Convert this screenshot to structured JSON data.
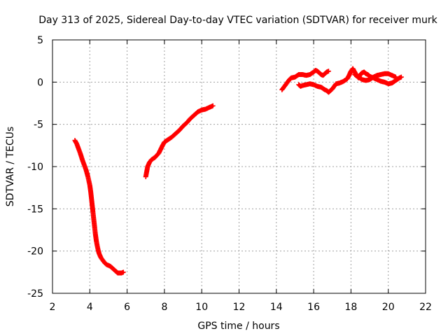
{
  "chart_data": {
    "type": "scatter",
    "title": "Day 313 of 2025, Sidereal Day-to-day VTEC variation (SDTVAR) for receiver murk",
    "xlabel": "GPS time / hours",
    "ylabel": "SDTVAR / TECUs",
    "xlim": [
      2,
      22
    ],
    "ylim": [
      -25,
      5
    ],
    "x_ticks": [
      "2",
      "4",
      "6",
      "8",
      "10",
      "12",
      "14",
      "16",
      "18",
      "20",
      "22"
    ],
    "y_ticks": [
      "5",
      "0",
      "-5",
      "-10",
      "-15",
      "-20",
      "-25"
    ],
    "grid": true,
    "marker": "plus",
    "color": "#ff0000",
    "series": [
      {
        "x": [
          3.2,
          3.3,
          3.4,
          3.5,
          3.6,
          3.7,
          3.8,
          3.9,
          4.0,
          4.05,
          4.1,
          4.15,
          4.2,
          4.25,
          4.3,
          4.35,
          4.4,
          4.45,
          4.5,
          4.6,
          4.7,
          4.8,
          4.9,
          5.0,
          5.1,
          5.2,
          5.3,
          5.4,
          5.5,
          5.6,
          5.7,
          5.8
        ],
        "y": [
          -6.9,
          -7.3,
          -7.9,
          -8.5,
          -9.2,
          -9.8,
          -10.4,
          -11.2,
          -12.2,
          -13.0,
          -14.0,
          -15.0,
          -16.0,
          -17.0,
          -18.0,
          -18.8,
          -19.4,
          -19.9,
          -20.3,
          -20.8,
          -21.1,
          -21.4,
          -21.6,
          -21.7,
          -21.8,
          -22.0,
          -22.2,
          -22.4,
          -22.6,
          -22.6,
          -22.6,
          -22.5
        ]
      },
      {
        "x": [
          7.0,
          7.1,
          7.2,
          7.3,
          7.5,
          7.7,
          7.9,
          8.0,
          8.2,
          8.4,
          8.6,
          8.8,
          9.0,
          9.2,
          9.4,
          9.6,
          9.8,
          10.0,
          10.2,
          10.4,
          10.6
        ],
        "y": [
          -11.2,
          -10.0,
          -9.5,
          -9.2,
          -8.9,
          -8.4,
          -7.5,
          -7.1,
          -6.8,
          -6.5,
          -6.1,
          -5.7,
          -5.2,
          -4.8,
          -4.3,
          -3.9,
          -3.5,
          -3.3,
          -3.2,
          -3.0,
          -2.8
        ]
      },
      {
        "x": [
          14.3,
          14.4,
          14.5,
          14.6,
          14.7,
          14.8,
          15.0,
          15.2,
          15.4,
          15.6,
          15.8,
          16.0,
          16.1,
          16.2,
          16.3,
          16.4,
          16.5,
          16.6,
          16.7,
          16.8
        ],
        "y": [
          -0.9,
          -0.6,
          -0.3,
          0.0,
          0.3,
          0.5,
          0.6,
          0.9,
          0.9,
          0.8,
          0.9,
          1.2,
          1.4,
          1.3,
          1.1,
          0.9,
          0.8,
          1.0,
          1.2,
          1.3
        ]
      },
      {
        "x": [
          15.2,
          15.3,
          15.4,
          15.6,
          15.8,
          16.0,
          16.2,
          16.4,
          16.6,
          16.7,
          16.8,
          16.9,
          17.0,
          17.1,
          17.2,
          17.4,
          17.6,
          17.8,
          17.9,
          18.0,
          18.1,
          18.2,
          18.3,
          18.4,
          18.5,
          18.6,
          18.7,
          18.8,
          18.9,
          19.0,
          19.2,
          19.4,
          19.6,
          19.8,
          20.0,
          20.2,
          20.4,
          20.6,
          20.7
        ],
        "y": [
          -0.3,
          -0.5,
          -0.4,
          -0.3,
          -0.2,
          -0.3,
          -0.5,
          -0.6,
          -0.9,
          -1.0,
          -1.2,
          -1.0,
          -0.8,
          -0.5,
          -0.2,
          -0.1,
          0.1,
          0.4,
          0.8,
          1.3,
          1.6,
          1.2,
          0.8,
          0.5,
          0.9,
          1.1,
          1.2,
          1.0,
          0.9,
          0.7,
          0.5,
          0.3,
          0.1,
          0.0,
          -0.2,
          -0.1,
          0.2,
          0.5,
          0.6
        ]
      },
      {
        "x": [
          18.2,
          18.4,
          18.6,
          18.8,
          19.0,
          19.2,
          19.4,
          19.6,
          19.8,
          20.0,
          20.2,
          20.4
        ],
        "y": [
          0.9,
          0.6,
          0.3,
          0.2,
          0.3,
          0.6,
          0.8,
          0.9,
          1.0,
          1.0,
          0.8,
          0.6
        ]
      }
    ]
  }
}
